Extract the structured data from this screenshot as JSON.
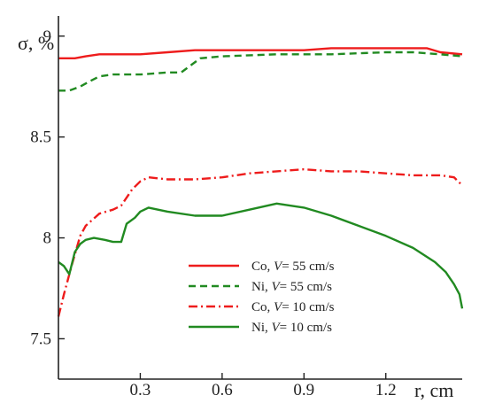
{
  "chart_data": {
    "type": "line",
    "title": "",
    "ylabel": "σ, %",
    "xlabel": "r, cm",
    "xlim": [
      0,
      1.48
    ],
    "ylim": [
      7.3,
      9.1
    ],
    "x_ticks": [
      0.3,
      0.6,
      0.9,
      1.2
    ],
    "x_tick_labels": [
      "0.3",
      "0.6",
      "0.9",
      "1.2"
    ],
    "y_ticks": [
      7.5,
      8,
      8.5,
      9
    ],
    "y_tick_labels": [
      "7.5",
      "8",
      "8.5",
      "9"
    ],
    "grid": false,
    "legend_position": "lower-right",
    "colors": {
      "red": "#ee1c1c",
      "green": "#218a21",
      "axis": "#222222"
    },
    "series": [
      {
        "name": "Co, V= 55 cm/s",
        "legend_prefix": "Co, ",
        "legend_var": "V",
        "legend_suffix": "= 55 cm/s",
        "color": "#ee1c1c",
        "dash": "solid",
        "x": [
          0,
          0.06,
          0.1,
          0.15,
          0.2,
          0.3,
          0.4,
          0.5,
          0.55,
          0.7,
          0.9,
          1.0,
          1.1,
          1.2,
          1.3,
          1.35,
          1.4,
          1.48
        ],
        "y": [
          8.89,
          8.89,
          8.9,
          8.91,
          8.91,
          8.91,
          8.92,
          8.93,
          8.93,
          8.93,
          8.93,
          8.94,
          8.94,
          8.94,
          8.94,
          8.94,
          8.92,
          8.91
        ]
      },
      {
        "name": "Ni, V= 55 cm/s",
        "legend_prefix": "Ni, ",
        "legend_var": "V",
        "legend_suffix": "= 55 cm/s",
        "color": "#218a21",
        "dash": "8,5",
        "x": [
          0,
          0.04,
          0.08,
          0.12,
          0.15,
          0.2,
          0.3,
          0.4,
          0.45,
          0.48,
          0.52,
          0.6,
          0.8,
          0.9,
          1.0,
          1.2,
          1.3,
          1.4,
          1.48
        ],
        "y": [
          8.73,
          8.73,
          8.75,
          8.78,
          8.8,
          8.81,
          8.81,
          8.82,
          8.82,
          8.85,
          8.89,
          8.9,
          8.91,
          8.91,
          8.91,
          8.92,
          8.92,
          8.91,
          8.9
        ]
      },
      {
        "name": "Co, V= 10 cm/s",
        "legend_prefix": "Co, ",
        "legend_var": "V",
        "legend_suffix": "= 10 cm/s",
        "color": "#ee1c1c",
        "dash": "10,4,2,4",
        "x": [
          0,
          0.02,
          0.05,
          0.08,
          0.1,
          0.15,
          0.2,
          0.23,
          0.27,
          0.3,
          0.33,
          0.4,
          0.5,
          0.6,
          0.7,
          0.8,
          0.9,
          1.0,
          1.1,
          1.2,
          1.3,
          1.4,
          1.45,
          1.48
        ],
        "y": [
          7.61,
          7.72,
          7.87,
          8.01,
          8.06,
          8.12,
          8.14,
          8.16,
          8.24,
          8.28,
          8.3,
          8.29,
          8.29,
          8.3,
          8.32,
          8.33,
          8.34,
          8.33,
          8.33,
          8.32,
          8.31,
          8.31,
          8.3,
          8.26
        ]
      },
      {
        "name": "Ni, V= 10 cm/s",
        "legend_prefix": "Ni, ",
        "legend_var": "V",
        "legend_suffix": "= 10 cm/s",
        "color": "#218a21",
        "dash": "solid",
        "x": [
          0,
          0.02,
          0.04,
          0.06,
          0.08,
          0.1,
          0.13,
          0.17,
          0.2,
          0.23,
          0.25,
          0.28,
          0.3,
          0.33,
          0.4,
          0.5,
          0.6,
          0.7,
          0.8,
          0.9,
          1.0,
          1.1,
          1.2,
          1.3,
          1.38,
          1.42,
          1.45,
          1.47,
          1.48
        ],
        "y": [
          7.88,
          7.86,
          7.82,
          7.93,
          7.97,
          7.99,
          8.0,
          7.99,
          7.98,
          7.98,
          8.07,
          8.1,
          8.13,
          8.15,
          8.13,
          8.11,
          8.11,
          8.14,
          8.17,
          8.15,
          8.11,
          8.06,
          8.01,
          7.95,
          7.88,
          7.83,
          7.77,
          7.72,
          7.65
        ]
      }
    ]
  }
}
